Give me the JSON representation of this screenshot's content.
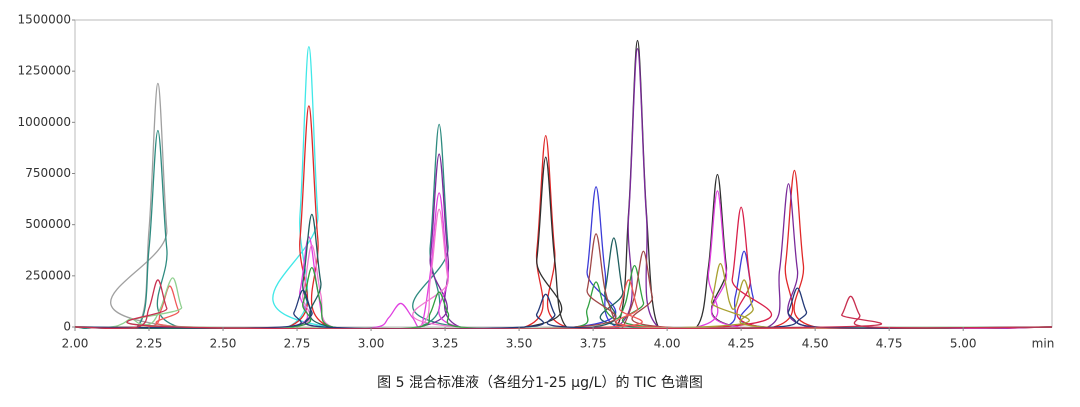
{
  "chart_data": {
    "type": "line",
    "x_label": "min",
    "caption": "图 5 混合标准液（各组分1-25 μg/L）的 TIC 色谱图",
    "xlim": [
      2.0,
      5.3
    ],
    "xticks": [
      {
        "value": 2.0,
        "label": "2.00"
      },
      {
        "value": 2.25,
        "label": "2.25"
      },
      {
        "value": 2.5,
        "label": "2.50"
      },
      {
        "value": 2.75,
        "label": "2.75"
      },
      {
        "value": 3.0,
        "label": "3.00"
      },
      {
        "value": 3.25,
        "label": "3.25"
      },
      {
        "value": 3.5,
        "label": "3.50"
      },
      {
        "value": 3.75,
        "label": "3.75"
      },
      {
        "value": 4.0,
        "label": "4.00"
      },
      {
        "value": 4.25,
        "label": "4.25"
      },
      {
        "value": 4.5,
        "label": "4.50"
      },
      {
        "value": 4.75,
        "label": "4.75"
      },
      {
        "value": 5.0,
        "label": "5.00"
      }
    ],
    "ylim": [
      0,
      1500000
    ],
    "yticks": [
      0,
      250000,
      500000,
      750000,
      1000000,
      1250000,
      1500000
    ],
    "series": [
      {
        "color": "#a0a0a0",
        "x": [
          2.0,
          2.21,
          2.25,
          2.28,
          2.31,
          2.35,
          5.3
        ],
        "values": [
          0,
          0,
          476000,
          1190000,
          476000,
          0,
          0
        ]
      },
      {
        "color": "#2e8b80",
        "x": [
          2.0,
          2.21,
          2.25,
          2.28,
          2.31,
          2.35,
          3.16,
          3.2,
          3.23,
          3.26,
          3.3,
          5.3
        ],
        "values": [
          0,
          0,
          384000,
          960000,
          384000,
          0,
          0,
          396000,
          990000,
          396000,
          0,
          0
        ]
      },
      {
        "color": "#40e8e8",
        "x": [
          2.0,
          2.72,
          2.76,
          2.79,
          2.82,
          2.86,
          5.3
        ],
        "values": [
          0,
          0,
          548000,
          1370000,
          548000,
          0,
          0
        ]
      },
      {
        "color": "#e02828",
        "x": [
          2.0,
          2.72,
          2.76,
          2.79,
          2.82,
          2.86,
          3.52,
          3.56,
          3.59,
          3.62,
          3.66,
          4.36,
          4.4,
          4.43,
          4.46,
          4.5,
          5.3
        ],
        "values": [
          0,
          0,
          432000,
          1080000,
          432000,
          0,
          0,
          374000,
          935000,
          374000,
          0,
          0,
          306000,
          765000,
          306000,
          0,
          0
        ]
      },
      {
        "color": "#303030",
        "x": [
          2.0,
          3.52,
          3.56,
          3.59,
          3.62,
          3.66,
          3.83,
          3.87,
          3.9,
          3.93,
          3.97,
          4.1,
          4.14,
          4.17,
          4.2,
          4.24,
          5.3
        ],
        "values": [
          0,
          0,
          332000,
          830000,
          332000,
          0,
          0,
          560000,
          1400000,
          560000,
          0,
          0,
          298000,
          745000,
          298000,
          0,
          0
        ]
      },
      {
        "color": "#7a2a9a",
        "x": [
          2.0,
          3.16,
          3.2,
          3.23,
          3.26,
          3.3,
          3.83,
          3.87,
          3.9,
          3.93,
          3.97,
          4.34,
          4.38,
          4.41,
          4.44,
          4.48,
          5.3
        ],
        "values": [
          0,
          0,
          338000,
          845000,
          338000,
          0,
          0,
          544000,
          1360000,
          544000,
          0,
          0,
          280000,
          700000,
          280000,
          0,
          0
        ]
      },
      {
        "color": "#3c3cd8",
        "x": [
          2.0,
          3.69,
          3.73,
          3.76,
          3.79,
          3.83,
          4.19,
          4.23,
          4.26,
          4.29,
          4.33,
          5.3
        ],
        "values": [
          0,
          0,
          274000,
          685000,
          274000,
          0,
          0,
          148000,
          370000,
          148000,
          0,
          0
        ]
      },
      {
        "color": "#d8204a",
        "x": [
          2.0,
          4.18,
          4.22,
          4.25,
          4.28,
          4.32,
          5.3
        ],
        "values": [
          0,
          0,
          234000,
          585000,
          234000,
          0,
          0
        ]
      },
      {
        "color": "#e040e0",
        "x": [
          2.0,
          2.72,
          2.76,
          2.79,
          2.82,
          2.86,
          3.02,
          3.06,
          3.1,
          3.14,
          3.17,
          3.2,
          3.23,
          3.26,
          3.3,
          4.1,
          4.14,
          4.17,
          4.2,
          4.24,
          5.3
        ],
        "values": [
          0,
          0,
          176000,
          440000,
          176000,
          0,
          0,
          46000,
          115000,
          46000,
          5000,
          262000,
          655000,
          262000,
          0,
          0,
          266000,
          665000,
          266000,
          0,
          0
        ]
      },
      {
        "color": "#f07ad0",
        "x": [
          2.0,
          2.73,
          2.77,
          2.8,
          2.83,
          2.87,
          3.16,
          3.2,
          3.23,
          3.26,
          3.3,
          5.3
        ],
        "values": [
          0,
          0,
          160000,
          400000,
          160000,
          0,
          0,
          230000,
          575000,
          230000,
          0,
          0
        ]
      },
      {
        "color": "#1f5f5f",
        "x": [
          2.0,
          2.73,
          2.77,
          2.8,
          2.83,
          2.87,
          3.75,
          3.79,
          3.82,
          3.85,
          3.89,
          5.3
        ],
        "values": [
          0,
          0,
          220000,
          550000,
          220000,
          0,
          0,
          174000,
          435000,
          174000,
          0,
          0
        ]
      },
      {
        "color": "#a8a030",
        "x": [
          2.0,
          4.11,
          4.15,
          4.18,
          4.21,
          4.23,
          4.26,
          4.29,
          4.33,
          5.3
        ],
        "values": [
          0,
          0,
          124000,
          310000,
          124000,
          95000,
          230000,
          92000,
          0,
          0
        ]
      },
      {
        "color": "#30a040",
        "x": [
          2.0,
          2.73,
          2.77,
          2.8,
          2.83,
          2.87,
          3.16,
          3.2,
          3.23,
          3.26,
          3.3,
          3.69,
          3.73,
          3.76,
          3.79,
          3.83,
          3.86,
          3.89,
          3.92,
          3.96,
          5.3
        ],
        "values": [
          0,
          0,
          116000,
          290000,
          116000,
          0,
          0,
          68000,
          170000,
          68000,
          0,
          0,
          88000,
          220000,
          88000,
          40000,
          120000,
          300000,
          120000,
          0,
          0
        ]
      },
      {
        "color": "#a04848",
        "x": [
          2.0,
          3.69,
          3.73,
          3.76,
          3.79,
          3.83,
          3.85,
          3.89,
          3.92,
          3.95,
          3.99,
          5.3
        ],
        "values": [
          0,
          0,
          182000,
          455000,
          182000,
          10000,
          0,
          148000,
          370000,
          148000,
          0,
          0
        ]
      },
      {
        "color": "#f05858",
        "x": [
          2.0,
          2.25,
          2.29,
          2.32,
          2.35,
          2.39,
          3.8,
          3.84,
          3.87,
          3.9,
          3.94,
          5.3
        ],
        "values": [
          0,
          0,
          80000,
          200000,
          80000,
          0,
          0,
          92000,
          230000,
          92000,
          0,
          0
        ]
      },
      {
        "color": "#90d090",
        "x": [
          2.0,
          2.12,
          2.16,
          2.19,
          2.22,
          2.26,
          2.29,
          2.33,
          2.36,
          2.4,
          5.3
        ],
        "values": [
          0,
          0,
          16000,
          40000,
          16000,
          20000,
          96000,
          240000,
          96000,
          0,
          0
        ]
      },
      {
        "color": "#243a78",
        "x": [
          2.0,
          2.7,
          2.74,
          2.77,
          2.8,
          2.84,
          3.52,
          3.56,
          3.59,
          3.62,
          3.66,
          4.37,
          4.41,
          4.44,
          4.47,
          4.51,
          5.3
        ],
        "values": [
          0,
          0,
          72000,
          180000,
          72000,
          0,
          0,
          64000,
          160000,
          64000,
          0,
          0,
          76000,
          190000,
          76000,
          0,
          0
        ]
      },
      {
        "color": "#c83050",
        "x": [
          2.0,
          2.21,
          2.25,
          2.28,
          2.31,
          2.35,
          4.55,
          4.59,
          4.62,
          4.65,
          4.69,
          5.3
        ],
        "values": [
          0,
          0,
          92000,
          230000,
          92000,
          0,
          0,
          60000,
          150000,
          60000,
          0,
          0
        ]
      }
    ]
  }
}
